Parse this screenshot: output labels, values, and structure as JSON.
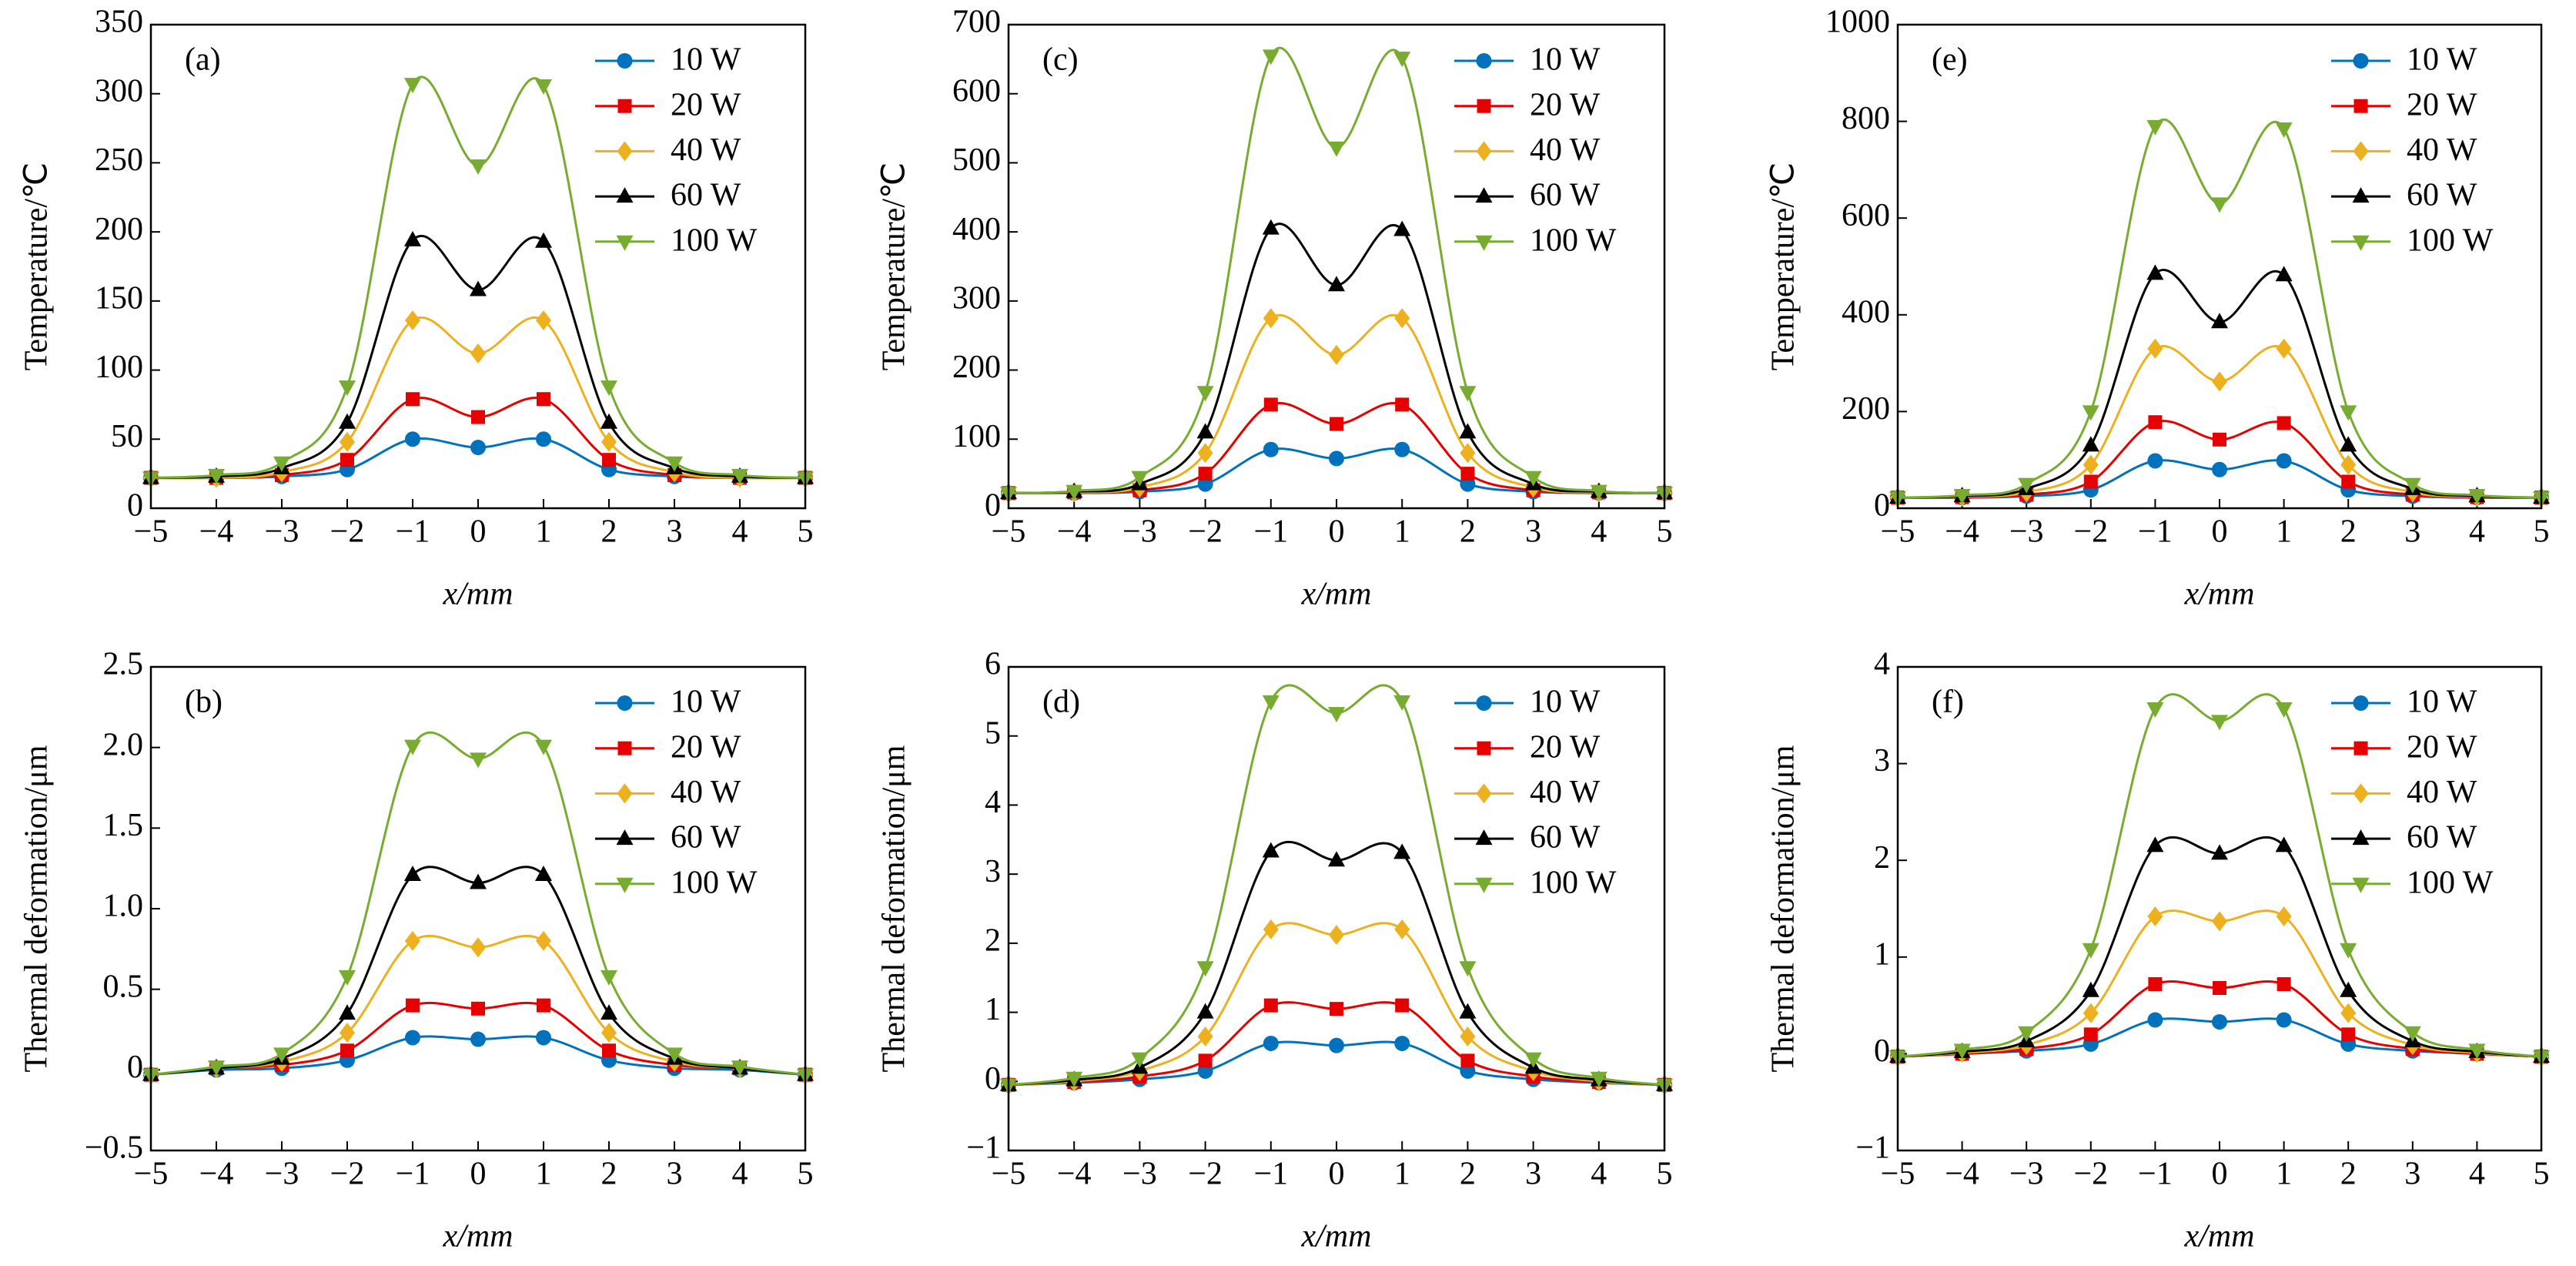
{
  "chart_data": [
    {
      "type": "line",
      "panel_label": "(a)",
      "x_label": "x/mm",
      "y_label": "Temperature/℃",
      "x": [
        -5,
        -4,
        -3,
        -2,
        -1,
        0,
        1,
        2,
        3,
        4,
        5
      ],
      "xlim": [
        -5,
        5
      ],
      "xticks": [
        {
          "value": -5,
          "label": "−5"
        },
        {
          "value": -4,
          "label": "−4"
        },
        {
          "value": -3,
          "label": "−3"
        },
        {
          "value": -2,
          "label": "−2"
        },
        {
          "value": -1,
          "label": "−1"
        },
        0,
        1,
        2,
        3,
        4,
        5
      ],
      "ylim": [
        0,
        350
      ],
      "yticks": [
        0,
        50,
        100,
        150,
        200,
        250,
        300,
        350
      ],
      "legend": "upper right",
      "series": [
        {
          "name": "10 W",
          "color": "#0072bd",
          "marker": "circle",
          "values": [
            22,
            22,
            23,
            28,
            50,
            44,
            50,
            28,
            23,
            22,
            22
          ]
        },
        {
          "name": "20 W",
          "color": "#e60000",
          "marker": "square",
          "values": [
            22,
            22,
            24,
            35,
            79,
            66,
            79,
            35,
            24,
            22,
            22
          ]
        },
        {
          "name": "40 W",
          "color": "#edb120",
          "marker": "diamond",
          "values": [
            22,
            22,
            26,
            48,
            136,
            112,
            136,
            48,
            26,
            22,
            22
          ]
        },
        {
          "name": "60 W",
          "color": "#000000",
          "marker": "triangle-up",
          "values": [
            22,
            23,
            29,
            62,
            194,
            158,
            193,
            62,
            29,
            23,
            22
          ]
        },
        {
          "name": "100 W",
          "color": "#77ac30",
          "marker": "triangle-down",
          "values": [
            22,
            24,
            33,
            88,
            307,
            248,
            306,
            88,
            33,
            24,
            22
          ]
        }
      ]
    },
    {
      "type": "line",
      "panel_label": "(c)",
      "x_label": "x/mm",
      "y_label": "Temperature/℃",
      "x": [
        -5,
        -4,
        -3,
        -2,
        -1,
        0,
        1,
        2,
        3,
        4,
        5
      ],
      "xlim": [
        -5,
        5
      ],
      "xticks": [
        {
          "value": -5,
          "label": "−5"
        },
        {
          "value": -4,
          "label": "−4"
        },
        {
          "value": -3,
          "label": "−3"
        },
        {
          "value": -2,
          "label": "−2"
        },
        {
          "value": -1,
          "label": "−1"
        },
        0,
        1,
        2,
        3,
        4,
        5
      ],
      "ylim": [
        0,
        700
      ],
      "yticks": [
        0,
        100,
        200,
        300,
        400,
        500,
        600,
        700
      ],
      "legend": "upper right",
      "series": [
        {
          "name": "10 W",
          "color": "#0072bd",
          "marker": "circle",
          "values": [
            22,
            22,
            24,
            35,
            85,
            72,
            85,
            35,
            24,
            22,
            22
          ]
        },
        {
          "name": "20 W",
          "color": "#e60000",
          "marker": "square",
          "values": [
            22,
            23,
            26,
            50,
            150,
            122,
            150,
            50,
            26,
            23,
            22
          ]
        },
        {
          "name": "40 W",
          "color": "#edb120",
          "marker": "diamond",
          "values": [
            22,
            23,
            30,
            80,
            275,
            222,
            275,
            80,
            30,
            23,
            22
          ]
        },
        {
          "name": "60 W",
          "color": "#000000",
          "marker": "triangle-up",
          "values": [
            22,
            24,
            35,
            110,
            405,
            323,
            403,
            110,
            35,
            24,
            22
          ]
        },
        {
          "name": "100 W",
          "color": "#77ac30",
          "marker": "triangle-down",
          "values": [
            22,
            25,
            45,
            168,
            655,
            522,
            652,
            168,
            45,
            25,
            22
          ]
        }
      ]
    },
    {
      "type": "line",
      "panel_label": "(e)",
      "x_label": "x/mm",
      "y_label": "Temperature/℃",
      "x": [
        -5,
        -4,
        -3,
        -2,
        -1,
        0,
        1,
        2,
        3,
        4,
        5
      ],
      "xlim": [
        -5,
        5
      ],
      "xticks": [
        {
          "value": -5,
          "label": "−5"
        },
        {
          "value": -4,
          "label": "−4"
        },
        {
          "value": -3,
          "label": "−3"
        },
        {
          "value": -2,
          "label": "−2"
        },
        {
          "value": -1,
          "label": "−1"
        },
        0,
        1,
        2,
        3,
        4,
        5
      ],
      "ylim": [
        0,
        1000
      ],
      "yticks": [
        0,
        200,
        400,
        600,
        800,
        1000
      ],
      "legend": "upper right",
      "series": [
        {
          "name": "10 W",
          "color": "#0072bd",
          "marker": "circle",
          "values": [
            22,
            22,
            25,
            38,
            98,
            80,
            98,
            38,
            25,
            22,
            22
          ]
        },
        {
          "name": "20 W",
          "color": "#e60000",
          "marker": "square",
          "values": [
            22,
            23,
            28,
            55,
            178,
            142,
            176,
            55,
            28,
            23,
            22
          ]
        },
        {
          "name": "40 W",
          "color": "#edb120",
          "marker": "diamond",
          "values": [
            22,
            24,
            33,
            90,
            330,
            262,
            330,
            90,
            33,
            24,
            22
          ]
        },
        {
          "name": "60 W",
          "color": "#000000",
          "marker": "triangle-up",
          "values": [
            22,
            25,
            40,
            130,
            485,
            385,
            482,
            130,
            40,
            25,
            22
          ]
        },
        {
          "name": "100 W",
          "color": "#77ac30",
          "marker": "triangle-down",
          "values": [
            22,
            27,
            50,
            200,
            790,
            630,
            785,
            200,
            50,
            27,
            22
          ]
        }
      ]
    },
    {
      "type": "line",
      "panel_label": "(b)",
      "x_label": "x/mm",
      "y_label": "Thermal deformation/μm",
      "x": [
        -5,
        -4,
        -3,
        -2,
        -1,
        0,
        1,
        2,
        3,
        4,
        5
      ],
      "xlim": [
        -5,
        5
      ],
      "xticks": [
        {
          "value": -5,
          "label": "−5"
        },
        {
          "value": -4,
          "label": "−4"
        },
        {
          "value": -3,
          "label": "−3"
        },
        {
          "value": -2,
          "label": "−2"
        },
        {
          "value": -1,
          "label": "−1"
        },
        0,
        1,
        2,
        3,
        4,
        5
      ],
      "ylim": [
        -0.5,
        2.5
      ],
      "yticks": [
        {
          "value": -0.5,
          "label": "−0.5"
        },
        0,
        0.5,
        {
          "value": 1,
          "label": "1.0"
        },
        1.5,
        {
          "value": 2,
          "label": "2.0"
        },
        2.5
      ],
      "legend": "upper right",
      "series": [
        {
          "name": "10 W",
          "color": "#0072bd",
          "marker": "circle",
          "values": [
            -0.03,
            0,
            0.01,
            0.06,
            0.2,
            0.19,
            0.2,
            0.06,
            0.01,
            0,
            -0.03
          ]
        },
        {
          "name": "20 W",
          "color": "#e60000",
          "marker": "square",
          "values": [
            -0.03,
            0.01,
            0.03,
            0.12,
            0.4,
            0.38,
            0.4,
            0.12,
            0.03,
            0.01,
            -0.03
          ]
        },
        {
          "name": "40 W",
          "color": "#edb120",
          "marker": "diamond",
          "values": [
            -0.03,
            0.01,
            0.05,
            0.23,
            0.8,
            0.76,
            0.8,
            0.23,
            0.05,
            0.01,
            -0.03
          ]
        },
        {
          "name": "60 W",
          "color": "#000000",
          "marker": "triangle-up",
          "values": [
            -0.03,
            0.01,
            0.07,
            0.35,
            1.21,
            1.16,
            1.21,
            0.35,
            0.07,
            0.01,
            -0.03
          ]
        },
        {
          "name": "100 W",
          "color": "#77ac30",
          "marker": "triangle-down",
          "values": [
            -0.03,
            0.02,
            0.1,
            0.58,
            2.01,
            1.93,
            2.01,
            0.58,
            0.1,
            0.02,
            -0.03
          ]
        }
      ]
    },
    {
      "type": "line",
      "panel_label": "(d)",
      "x_label": "x/mm",
      "y_label": "Thermal deformation/μm",
      "x": [
        -5,
        -4,
        -3,
        -2,
        -1,
        0,
        1,
        2,
        3,
        4,
        5
      ],
      "xlim": [
        -5,
        5
      ],
      "xticks": [
        {
          "value": -5,
          "label": "−5"
        },
        {
          "value": -4,
          "label": "−4"
        },
        {
          "value": -3,
          "label": "−3"
        },
        {
          "value": -2,
          "label": "−2"
        },
        {
          "value": -1,
          "label": "−1"
        },
        0,
        1,
        2,
        3,
        4,
        5
      ],
      "ylim": [
        -1,
        6
      ],
      "yticks": [
        {
          "value": -1,
          "label": "−1"
        },
        0,
        1,
        2,
        3,
        4,
        5,
        6
      ],
      "legend": "upper right",
      "series": [
        {
          "name": "10 W",
          "color": "#0072bd",
          "marker": "circle",
          "values": [
            -0.05,
            -0.02,
            0.03,
            0.15,
            0.55,
            0.52,
            0.55,
            0.15,
            0.03,
            -0.02,
            -0.05
          ]
        },
        {
          "name": "20 W",
          "color": "#e60000",
          "marker": "square",
          "values": [
            -0.05,
            -0.01,
            0.07,
            0.3,
            1.1,
            1.05,
            1.1,
            0.3,
            0.07,
            -0.01,
            -0.05
          ]
        },
        {
          "name": "40 W",
          "color": "#edb120",
          "marker": "diamond",
          "values": [
            -0.05,
            0,
            0.15,
            0.65,
            2.2,
            2.12,
            2.2,
            0.65,
            0.15,
            0,
            -0.05
          ]
        },
        {
          "name": "60 W",
          "color": "#000000",
          "marker": "triangle-up",
          "values": [
            -0.05,
            0.02,
            0.2,
            1.0,
            3.33,
            3.2,
            3.31,
            1.0,
            0.2,
            0.02,
            -0.05
          ]
        },
        {
          "name": "100 W",
          "color": "#77ac30",
          "marker": "triangle-down",
          "values": [
            -0.05,
            0.05,
            0.33,
            1.65,
            5.5,
            5.33,
            5.5,
            1.65,
            0.33,
            0.05,
            -0.05
          ]
        }
      ]
    },
    {
      "type": "line",
      "panel_label": "(f)",
      "x_label": "x/mm",
      "y_label": "Thermal deformation/μm",
      "x": [
        -5,
        -4,
        -3,
        -2,
        -1,
        0,
        1,
        2,
        3,
        4,
        5
      ],
      "xlim": [
        -5,
        5
      ],
      "xticks": [
        {
          "value": -5,
          "label": "−5"
        },
        {
          "value": -4,
          "label": "−4"
        },
        {
          "value": -3,
          "label": "−3"
        },
        {
          "value": -2,
          "label": "−2"
        },
        {
          "value": -1,
          "label": "−1"
        },
        0,
        1,
        2,
        3,
        4,
        5
      ],
      "ylim": [
        -1,
        4
      ],
      "yticks": [
        {
          "value": -1,
          "label": "−1"
        },
        0,
        1,
        2,
        3,
        4
      ],
      "legend": "upper right",
      "series": [
        {
          "name": "10 W",
          "color": "#0072bd",
          "marker": "circle",
          "values": [
            -0.03,
            0,
            0.03,
            0.1,
            0.35,
            0.33,
            0.35,
            0.1,
            0.03,
            0,
            -0.03
          ]
        },
        {
          "name": "20 W",
          "color": "#e60000",
          "marker": "square",
          "values": [
            -0.03,
            0,
            0.05,
            0.2,
            0.72,
            0.68,
            0.72,
            0.2,
            0.05,
            0,
            -0.03
          ]
        },
        {
          "name": "40 W",
          "color": "#edb120",
          "marker": "diamond",
          "values": [
            -0.03,
            0.01,
            0.09,
            0.42,
            1.42,
            1.37,
            1.42,
            0.42,
            0.09,
            0.01,
            -0.03
          ]
        },
        {
          "name": "60 W",
          "color": "#000000",
          "marker": "triangle-up",
          "values": [
            -0.03,
            0.02,
            0.13,
            0.65,
            2.15,
            2.07,
            2.15,
            0.65,
            0.13,
            0.02,
            -0.03
          ]
        },
        {
          "name": "100 W",
          "color": "#77ac30",
          "marker": "triangle-down",
          "values": [
            -0.03,
            0.04,
            0.22,
            1.08,
            3.57,
            3.44,
            3.57,
            1.08,
            0.22,
            0.04,
            -0.03
          ]
        }
      ]
    }
  ]
}
